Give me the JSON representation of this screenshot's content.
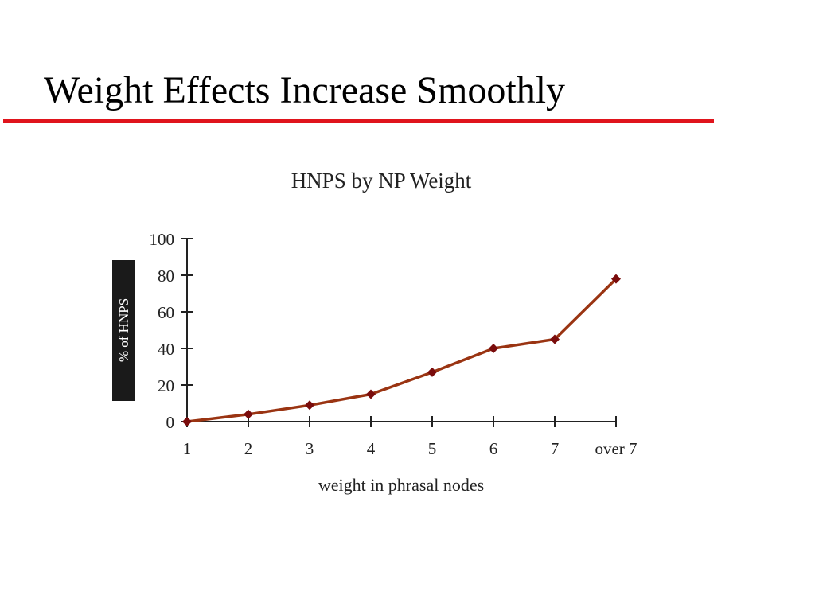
{
  "slide": {
    "title": "Weight Effects Increase Smoothly"
  },
  "colors": {
    "rule": "#e0141c",
    "line": "#9a3412",
    "marker": "#7a0c0c",
    "axis": "#222222",
    "ylabel_bg": "#1a1a1a"
  },
  "chart_data": {
    "type": "line",
    "title": "HNPS by NP Weight",
    "xlabel": "weight in phrasal nodes",
    "ylabel": "% of HNPS",
    "categories": [
      "1",
      "2",
      "3",
      "4",
      "5",
      "6",
      "7",
      "over 7"
    ],
    "series": [
      {
        "values": [
          0,
          4,
          9,
          15,
          27,
          40,
          45,
          78
        ]
      }
    ],
    "yticks": [
      "0",
      "20",
      "40",
      "60",
      "80",
      "100"
    ],
    "ylim": [
      0,
      100
    ],
    "grid": false,
    "legend": "none"
  }
}
